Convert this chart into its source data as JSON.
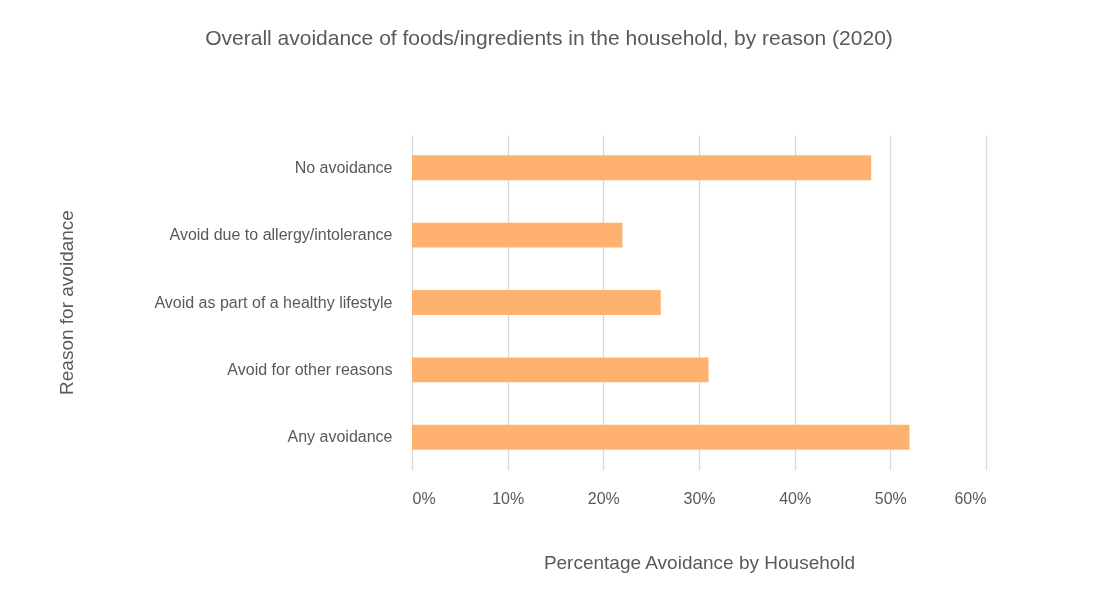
{
  "chart_data": {
    "type": "bar",
    "orientation": "horizontal",
    "title": "Overall avoidance of foods/ingredients in the household, by reason (2020)",
    "xlabel": "Percentage Avoidance by Household",
    "ylabel": "Reason for avoidance",
    "categories": [
      "No avoidance",
      "Avoid due to allergy/intolerance",
      "Avoid as part of a healthy lifestyle",
      "Avoid for other reasons",
      "Any avoidance"
    ],
    "values": [
      48,
      22,
      26,
      31,
      52
    ],
    "color": "#ffb26f",
    "xlim": [
      0,
      60
    ],
    "xticks": [
      {
        "value": 0,
        "label": "0%"
      },
      {
        "value": 10,
        "label": "10%"
      },
      {
        "value": 20,
        "label": "20%"
      },
      {
        "value": 30,
        "label": "30%"
      },
      {
        "value": 40,
        "label": "40%"
      },
      {
        "value": 50,
        "label": "50%"
      },
      {
        "value": 60,
        "label": "60%"
      }
    ],
    "grid": "x"
  }
}
